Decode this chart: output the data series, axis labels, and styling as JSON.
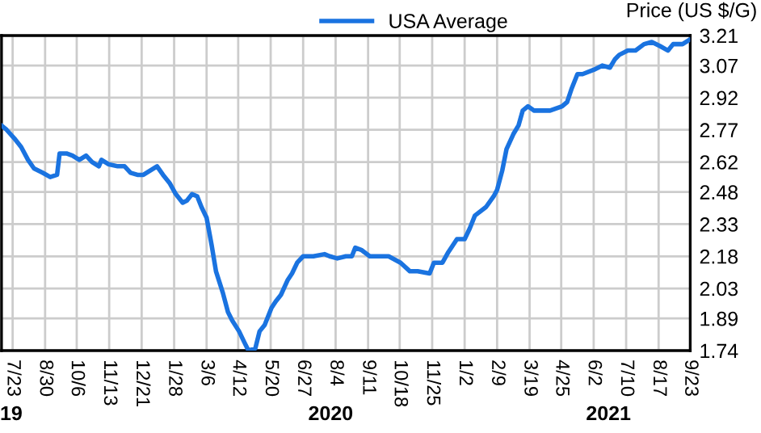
{
  "chart_data": {
    "type": "line",
    "ylabel": "Price (US $/G)",
    "legend": "top",
    "grid": true,
    "marker": "none",
    "line_style": "solid",
    "annotations": [
      "19",
      "2020",
      "2021"
    ],
    "xlim": [
      "2019-07-10",
      "2021-09-23"
    ],
    "ylim": [
      1.74,
      3.21
    ],
    "yticks": [
      1.74,
      1.89,
      2.03,
      2.18,
      2.33,
      2.48,
      2.62,
      2.77,
      2.92,
      3.07,
      3.21
    ],
    "xticks": [
      {
        "value": "2019-07-23",
        "label": "7/23"
      },
      {
        "value": "2019-08-30",
        "label": "8/30"
      },
      {
        "value": "2019-10-06",
        "label": "10/6"
      },
      {
        "value": "2019-11-13",
        "label": "11/13"
      },
      {
        "value": "2019-12-21",
        "label": "12/21"
      },
      {
        "value": "2020-01-28",
        "label": "1/28"
      },
      {
        "value": "2020-03-06",
        "label": "3/6"
      },
      {
        "value": "2020-04-12",
        "label": "4/12"
      },
      {
        "value": "2020-05-20",
        "label": "5/20"
      },
      {
        "value": "2020-06-27",
        "label": "6/27"
      },
      {
        "value": "2020-08-04",
        "label": "8/4"
      },
      {
        "value": "2020-09-11",
        "label": "9/11"
      },
      {
        "value": "2020-10-18",
        "label": "10/18"
      },
      {
        "value": "2020-11-25",
        "label": "11/25"
      },
      {
        "value": "2021-01-02",
        "label": "1/2"
      },
      {
        "value": "2021-02-09",
        "label": "2/9"
      },
      {
        "value": "2021-03-19",
        "label": "3/19"
      },
      {
        "value": "2021-04-25",
        "label": "4/25"
      },
      {
        "value": "2021-06-02",
        "label": "6/2"
      },
      {
        "value": "2021-07-10",
        "label": "7/10"
      },
      {
        "value": "2021-08-17",
        "label": "8/17"
      },
      {
        "value": "2021-09-23",
        "label": "9/23"
      }
    ],
    "x": [
      "2019-07-10",
      "2019-07-16",
      "2019-07-25",
      "2019-08-02",
      "2019-08-10",
      "2019-08-17",
      "2019-08-27",
      "2019-09-05",
      "2019-09-13",
      "2019-09-16",
      "2019-09-24",
      "2019-10-01",
      "2019-10-09",
      "2019-10-17",
      "2019-10-24",
      "2019-11-01",
      "2019-11-04",
      "2019-11-12",
      "2019-11-23",
      "2019-12-01",
      "2019-12-08",
      "2019-12-16",
      "2019-12-23",
      "2019-12-31",
      "2020-01-08",
      "2020-01-15",
      "2020-01-23",
      "2020-01-30",
      "2020-02-07",
      "2020-02-12",
      "2020-02-18",
      "2020-02-24",
      "2020-02-29",
      "2020-03-06",
      "2020-03-12",
      "2020-03-17",
      "2020-03-25",
      "2020-03-31",
      "2020-04-05",
      "2020-04-13",
      "2020-04-19",
      "2020-04-24",
      "2020-05-02",
      "2020-05-07",
      "2020-05-13",
      "2020-05-21",
      "2020-05-26",
      "2020-06-01",
      "2020-06-09",
      "2020-06-14",
      "2020-06-20",
      "2020-06-27",
      "2020-07-09",
      "2020-07-22",
      "2020-07-28",
      "2020-08-06",
      "2020-08-16",
      "2020-08-23",
      "2020-08-27",
      "2020-09-03",
      "2020-09-13",
      "2020-09-22",
      "2020-10-05",
      "2020-10-19",
      "2020-10-30",
      "2020-11-08",
      "2020-11-22",
      "2020-11-27",
      "2020-12-07",
      "2020-12-14",
      "2020-12-24",
      "2021-01-02",
      "2021-01-08",
      "2021-01-14",
      "2021-01-27",
      "2021-02-05",
      "2021-02-09",
      "2021-02-15",
      "2021-02-20",
      "2021-02-28",
      "2021-03-06",
      "2021-03-11",
      "2021-03-17",
      "2021-03-24",
      "2021-03-30",
      "2021-04-12",
      "2021-04-26",
      "2021-05-02",
      "2021-05-07",
      "2021-05-14",
      "2021-05-20",
      "2021-06-02",
      "2021-06-12",
      "2021-06-21",
      "2021-06-27",
      "2021-07-02",
      "2021-07-12",
      "2021-07-21",
      "2021-07-31",
      "2021-08-09",
      "2021-08-19",
      "2021-08-28",
      "2021-09-03",
      "2021-09-14",
      "2021-09-22"
    ],
    "series": [
      {
        "name": "USA Average",
        "color": "#1a73e0",
        "values": [
          2.79,
          2.77,
          2.73,
          2.69,
          2.63,
          2.59,
          2.57,
          2.55,
          2.56,
          2.66,
          2.66,
          2.65,
          2.63,
          2.65,
          2.62,
          2.6,
          2.63,
          2.61,
          2.6,
          2.6,
          2.57,
          2.56,
          2.56,
          2.58,
          2.6,
          2.56,
          2.52,
          2.47,
          2.43,
          2.44,
          2.47,
          2.46,
          2.41,
          2.36,
          2.23,
          2.11,
          2.01,
          1.92,
          1.88,
          1.83,
          1.78,
          1.74,
          1.75,
          1.83,
          1.86,
          1.94,
          1.97,
          2.0,
          2.07,
          2.1,
          2.15,
          2.18,
          2.18,
          2.19,
          2.18,
          2.17,
          2.18,
          2.18,
          2.22,
          2.21,
          2.18,
          2.18,
          2.18,
          2.15,
          2.11,
          2.11,
          2.1,
          2.15,
          2.15,
          2.2,
          2.26,
          2.26,
          2.31,
          2.37,
          2.41,
          2.46,
          2.49,
          2.58,
          2.68,
          2.75,
          2.79,
          2.86,
          2.88,
          2.86,
          2.86,
          2.86,
          2.88,
          2.9,
          2.96,
          3.03,
          3.03,
          3.05,
          3.07,
          3.06,
          3.1,
          3.12,
          3.14,
          3.14,
          3.17,
          3.18,
          3.16,
          3.14,
          3.17,
          3.17,
          3.19
        ]
      }
    ]
  }
}
